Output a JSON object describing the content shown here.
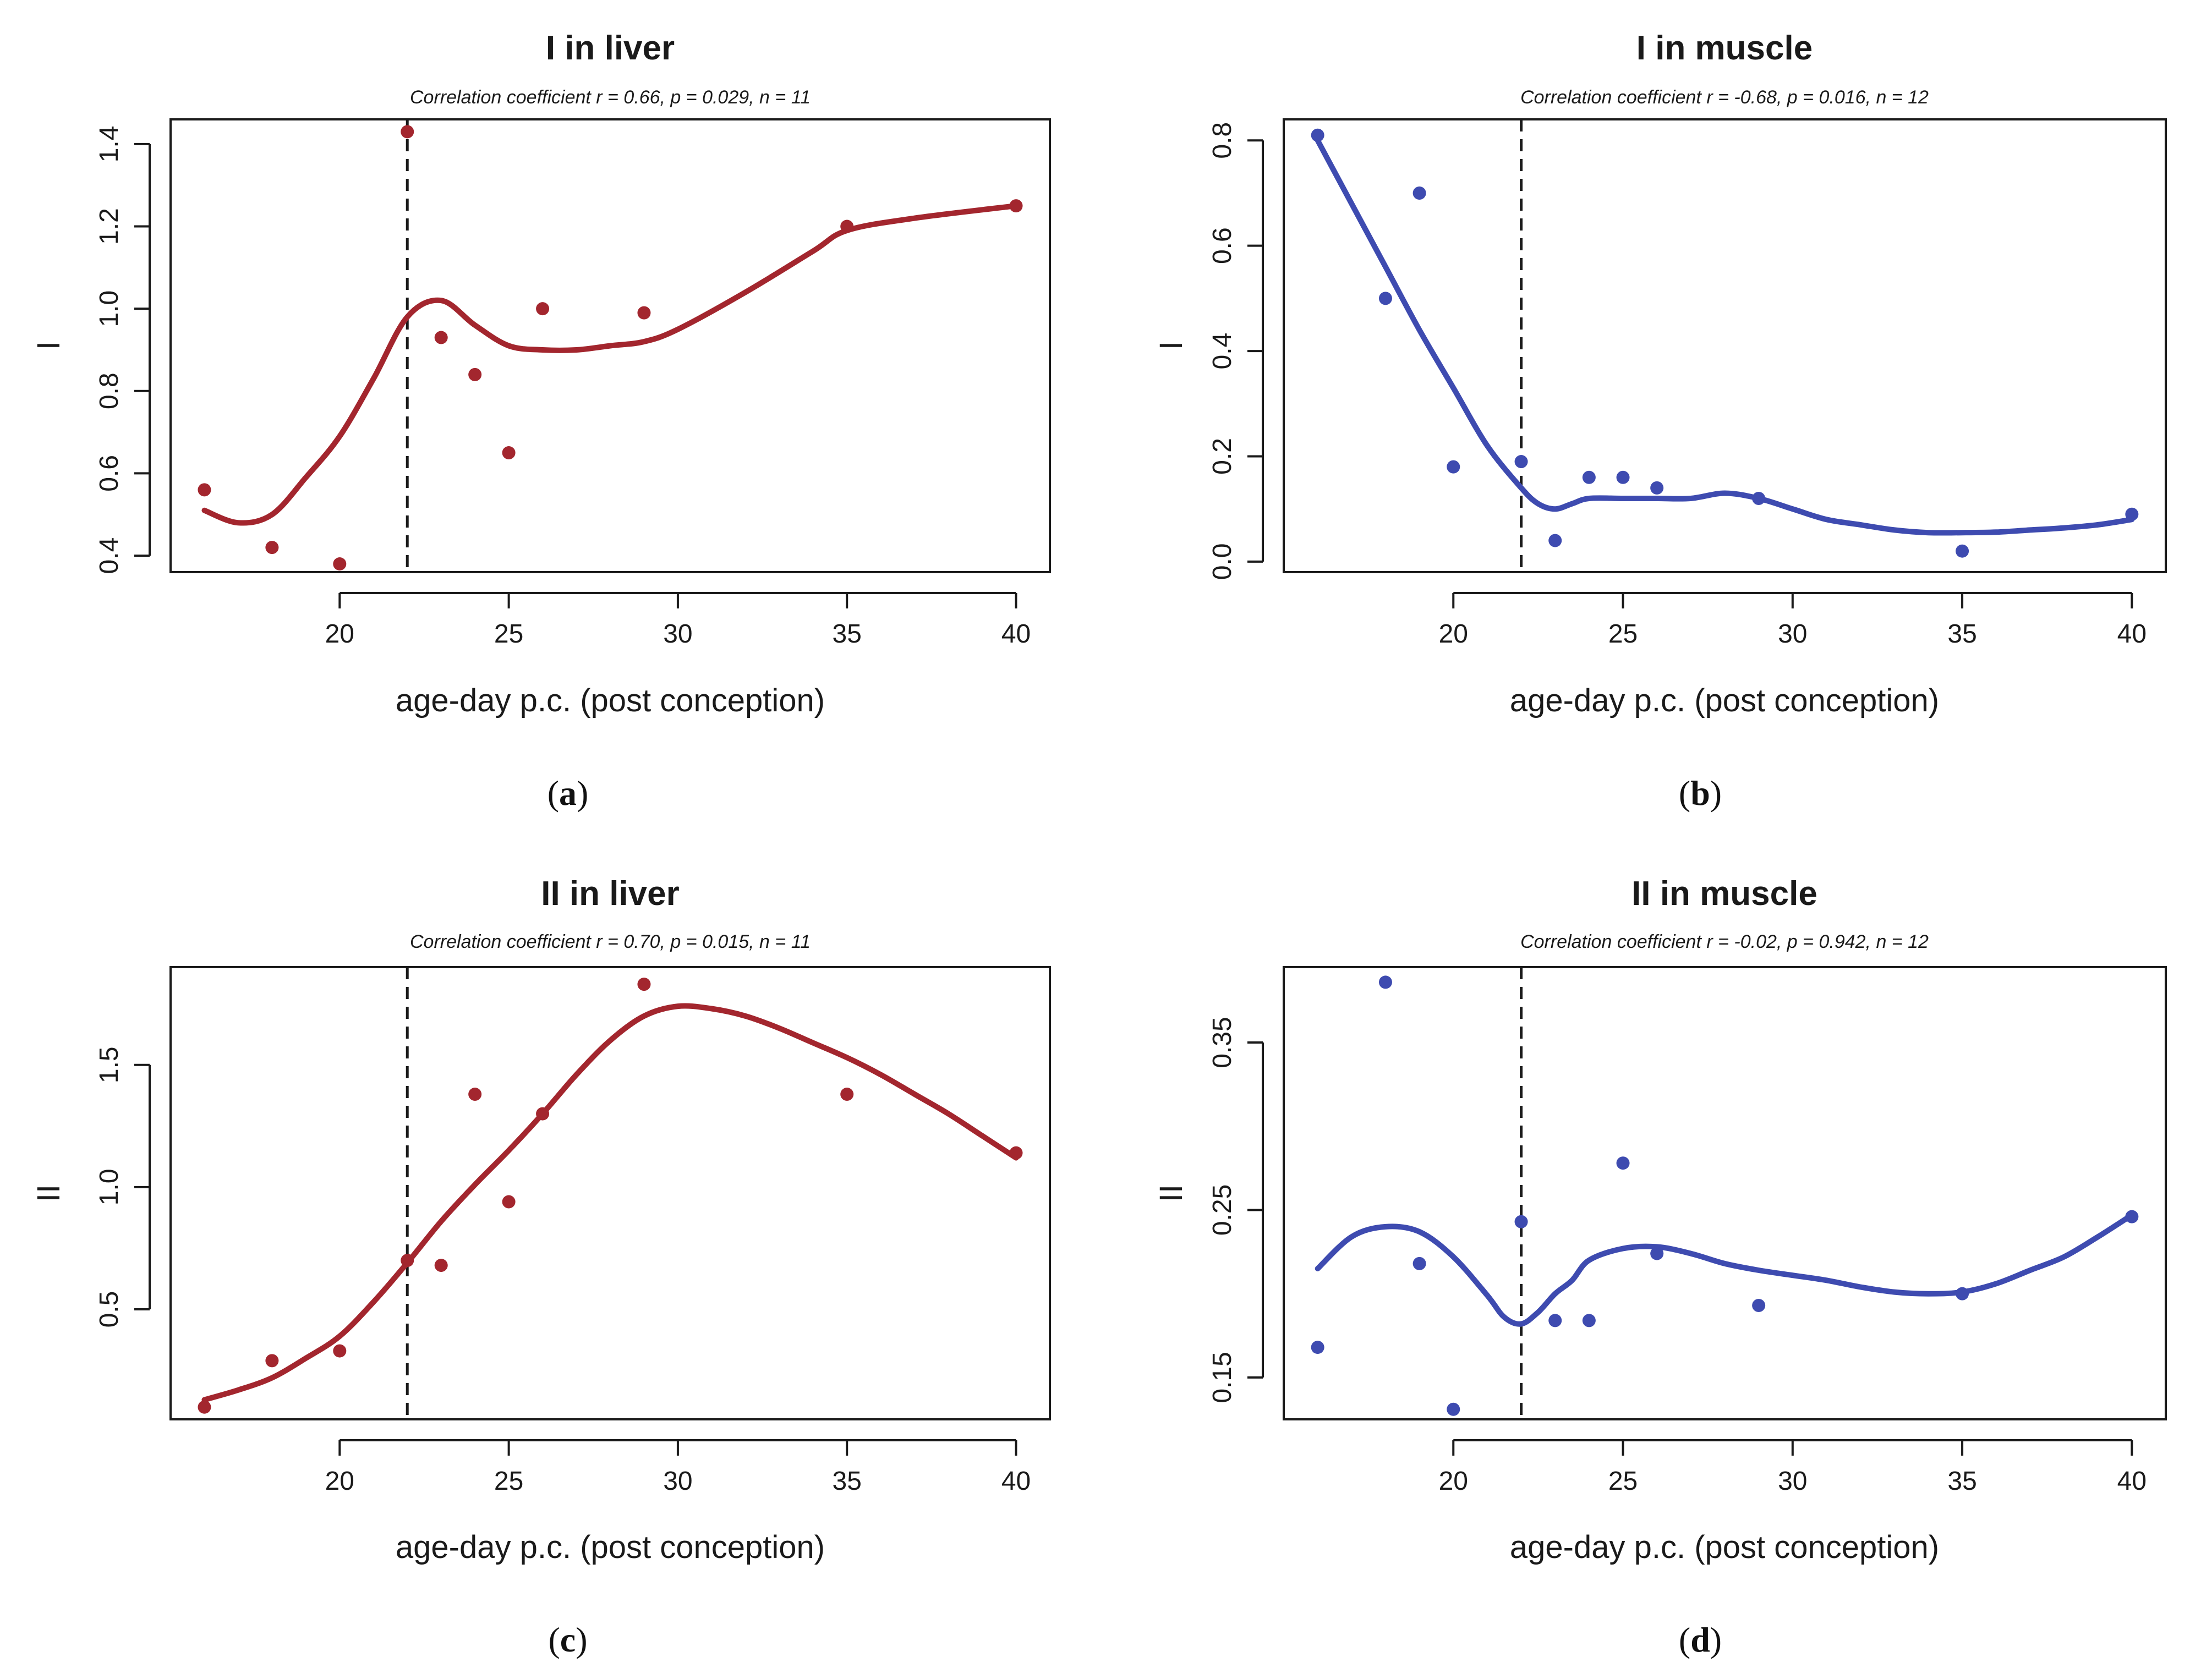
{
  "colors": {
    "red": "#A3262E",
    "blue": "#3E4BB0",
    "ink": "#1a1a1a"
  },
  "chart_data": [
    {
      "type": "scatter",
      "panel_label": "a",
      "title": "I in liver",
      "subtitle": "Correlation coefficient r = 0.66, p = 0.029, n = 11",
      "xlabel": "age-day p.c. (post conception)",
      "ylabel": "I",
      "color_key": "red",
      "xlim": [
        15,
        41
      ],
      "ylim": [
        0.36,
        1.46
      ],
      "xticks": [
        20,
        25,
        30,
        35,
        40
      ],
      "yticks": [
        0.4,
        0.6,
        0.8,
        1.0,
        1.2,
        1.4
      ],
      "ytick_labels": [
        "0.4",
        "0.6",
        "0.8",
        "1.0",
        "1.2",
        "1.4"
      ],
      "vline": 22,
      "points": [
        [
          16,
          0.56
        ],
        [
          18,
          0.42
        ],
        [
          20,
          0.38
        ],
        [
          22,
          1.43
        ],
        [
          23,
          0.93
        ],
        [
          24,
          0.84
        ],
        [
          25,
          0.65
        ],
        [
          26,
          1.0
        ],
        [
          29,
          0.99
        ],
        [
          35,
          1.2
        ],
        [
          40,
          1.25
        ]
      ],
      "smooth": [
        [
          16,
          0.51
        ],
        [
          17,
          0.48
        ],
        [
          18,
          0.5
        ],
        [
          19,
          0.59
        ],
        [
          20,
          0.69
        ],
        [
          21,
          0.83
        ],
        [
          22,
          0.98
        ],
        [
          23,
          1.02
        ],
        [
          24,
          0.96
        ],
        [
          25,
          0.91
        ],
        [
          26,
          0.9
        ],
        [
          27,
          0.9
        ],
        [
          28,
          0.91
        ],
        [
          29,
          0.92
        ],
        [
          30,
          0.95
        ],
        [
          32,
          1.04
        ],
        [
          34,
          1.14
        ],
        [
          35,
          1.19
        ],
        [
          37,
          1.22
        ],
        [
          40,
          1.25
        ]
      ]
    },
    {
      "type": "scatter",
      "panel_label": "b",
      "title": "I in muscle",
      "subtitle": "Correlation coefficient r = -0.68, p = 0.016, n = 12",
      "xlabel": "age-day p.c. (post conception)",
      "ylabel": "I",
      "color_key": "blue",
      "xlim": [
        15,
        41
      ],
      "ylim": [
        -0.02,
        0.84
      ],
      "xticks": [
        20,
        25,
        30,
        35,
        40
      ],
      "yticks": [
        0.0,
        0.2,
        0.4,
        0.6,
        0.8
      ],
      "ytick_labels": [
        "0.0",
        "0.2",
        "0.4",
        "0.6",
        "0.8"
      ],
      "vline": 22,
      "points": [
        [
          16,
          0.81
        ],
        [
          18,
          0.5
        ],
        [
          19,
          0.7
        ],
        [
          20,
          0.18
        ],
        [
          22,
          0.19
        ],
        [
          23,
          0.04
        ],
        [
          24,
          0.16
        ],
        [
          25,
          0.16
        ],
        [
          26,
          0.14
        ],
        [
          29,
          0.12
        ],
        [
          35,
          0.02
        ],
        [
          40,
          0.09
        ]
      ],
      "smooth": [
        [
          16,
          0.8
        ],
        [
          17,
          0.68
        ],
        [
          18,
          0.56
        ],
        [
          19,
          0.44
        ],
        [
          20,
          0.33
        ],
        [
          21,
          0.22
        ],
        [
          22,
          0.14
        ],
        [
          22.5,
          0.11
        ],
        [
          23,
          0.1
        ],
        [
          23.5,
          0.11
        ],
        [
          24,
          0.12
        ],
        [
          25,
          0.12
        ],
        [
          26,
          0.12
        ],
        [
          27,
          0.12
        ],
        [
          28,
          0.13
        ],
        [
          29,
          0.12
        ],
        [
          30,
          0.1
        ],
        [
          31,
          0.08
        ],
        [
          32,
          0.07
        ],
        [
          33,
          0.06
        ],
        [
          34,
          0.055
        ],
        [
          35,
          0.055
        ],
        [
          36,
          0.056
        ],
        [
          37,
          0.06
        ],
        [
          38,
          0.064
        ],
        [
          39,
          0.07
        ],
        [
          40,
          0.08
        ]
      ]
    },
    {
      "type": "scatter",
      "panel_label": "c",
      "title": "II in liver",
      "subtitle": "Correlation coefficient r = 0.70, p = 0.015, n = 11",
      "xlabel": "age-day p.c. (post conception)",
      "ylabel": "II",
      "color_key": "red",
      "xlim": [
        15,
        41
      ],
      "ylim": [
        0.05,
        1.9
      ],
      "xticks": [
        20,
        25,
        30,
        35,
        40
      ],
      "yticks": [
        0.5,
        1.0,
        1.5
      ],
      "ytick_labels": [
        "0.5",
        "1.0",
        "1.5"
      ],
      "vline": 22,
      "points": [
        [
          16,
          0.1
        ],
        [
          18,
          0.29
        ],
        [
          20,
          0.33
        ],
        [
          22,
          0.7
        ],
        [
          23,
          0.68
        ],
        [
          24,
          1.38
        ],
        [
          25,
          0.94
        ],
        [
          26,
          1.3
        ],
        [
          29,
          1.83
        ],
        [
          35,
          1.38
        ],
        [
          40,
          1.14
        ]
      ],
      "smooth": [
        [
          16,
          0.13
        ],
        [
          17,
          0.17
        ],
        [
          18,
          0.22
        ],
        [
          19,
          0.3
        ],
        [
          20,
          0.39
        ],
        [
          21,
          0.53
        ],
        [
          22,
          0.69
        ],
        [
          23,
          0.86
        ],
        [
          24,
          1.01
        ],
        [
          25,
          1.15
        ],
        [
          26,
          1.3
        ],
        [
          27,
          1.46
        ],
        [
          28,
          1.6
        ],
        [
          29,
          1.7
        ],
        [
          30,
          1.74
        ],
        [
          31,
          1.73
        ],
        [
          32,
          1.7
        ],
        [
          33,
          1.65
        ],
        [
          34,
          1.59
        ],
        [
          35,
          1.53
        ],
        [
          36,
          1.46
        ],
        [
          37,
          1.38
        ],
        [
          38,
          1.3
        ],
        [
          39,
          1.21
        ],
        [
          40,
          1.12
        ]
      ]
    },
    {
      "type": "scatter",
      "panel_label": "d",
      "title": "II in muscle",
      "subtitle": "Correlation coefficient r = -0.02, p = 0.942, n = 12",
      "xlabel": "age-day p.c. (post conception)",
      "ylabel": "II",
      "color_key": "blue",
      "xlim": [
        15,
        41
      ],
      "ylim": [
        0.125,
        0.395
      ],
      "xticks": [
        20,
        25,
        30,
        35,
        40
      ],
      "yticks": [
        0.15,
        0.25,
        0.35
      ],
      "ytick_labels": [
        "0.15",
        "0.25",
        "0.35"
      ],
      "vline": 22,
      "points": [
        [
          16,
          0.168
        ],
        [
          18,
          0.386
        ],
        [
          19,
          0.218
        ],
        [
          20,
          0.131
        ],
        [
          22,
          0.243
        ],
        [
          23,
          0.184
        ],
        [
          24,
          0.184
        ],
        [
          25,
          0.278
        ],
        [
          26,
          0.224
        ],
        [
          29,
          0.193
        ],
        [
          35,
          0.2
        ],
        [
          40,
          0.246
        ]
      ],
      "smooth": [
        [
          16,
          0.215
        ],
        [
          17,
          0.234
        ],
        [
          18,
          0.24
        ],
        [
          19,
          0.237
        ],
        [
          20,
          0.222
        ],
        [
          21,
          0.199
        ],
        [
          21.5,
          0.186
        ],
        [
          22,
          0.182
        ],
        [
          22.5,
          0.189
        ],
        [
          23,
          0.2
        ],
        [
          23.5,
          0.208
        ],
        [
          24,
          0.22
        ],
        [
          25,
          0.227
        ],
        [
          26,
          0.228
        ],
        [
          27,
          0.224
        ],
        [
          28,
          0.218
        ],
        [
          29,
          0.214
        ],
        [
          30,
          0.211
        ],
        [
          31,
          0.208
        ],
        [
          32,
          0.204
        ],
        [
          33,
          0.201
        ],
        [
          34,
          0.2
        ],
        [
          35,
          0.201
        ],
        [
          36,
          0.206
        ],
        [
          37,
          0.214
        ],
        [
          38,
          0.222
        ],
        [
          39,
          0.234
        ],
        [
          40,
          0.247
        ]
      ]
    }
  ]
}
